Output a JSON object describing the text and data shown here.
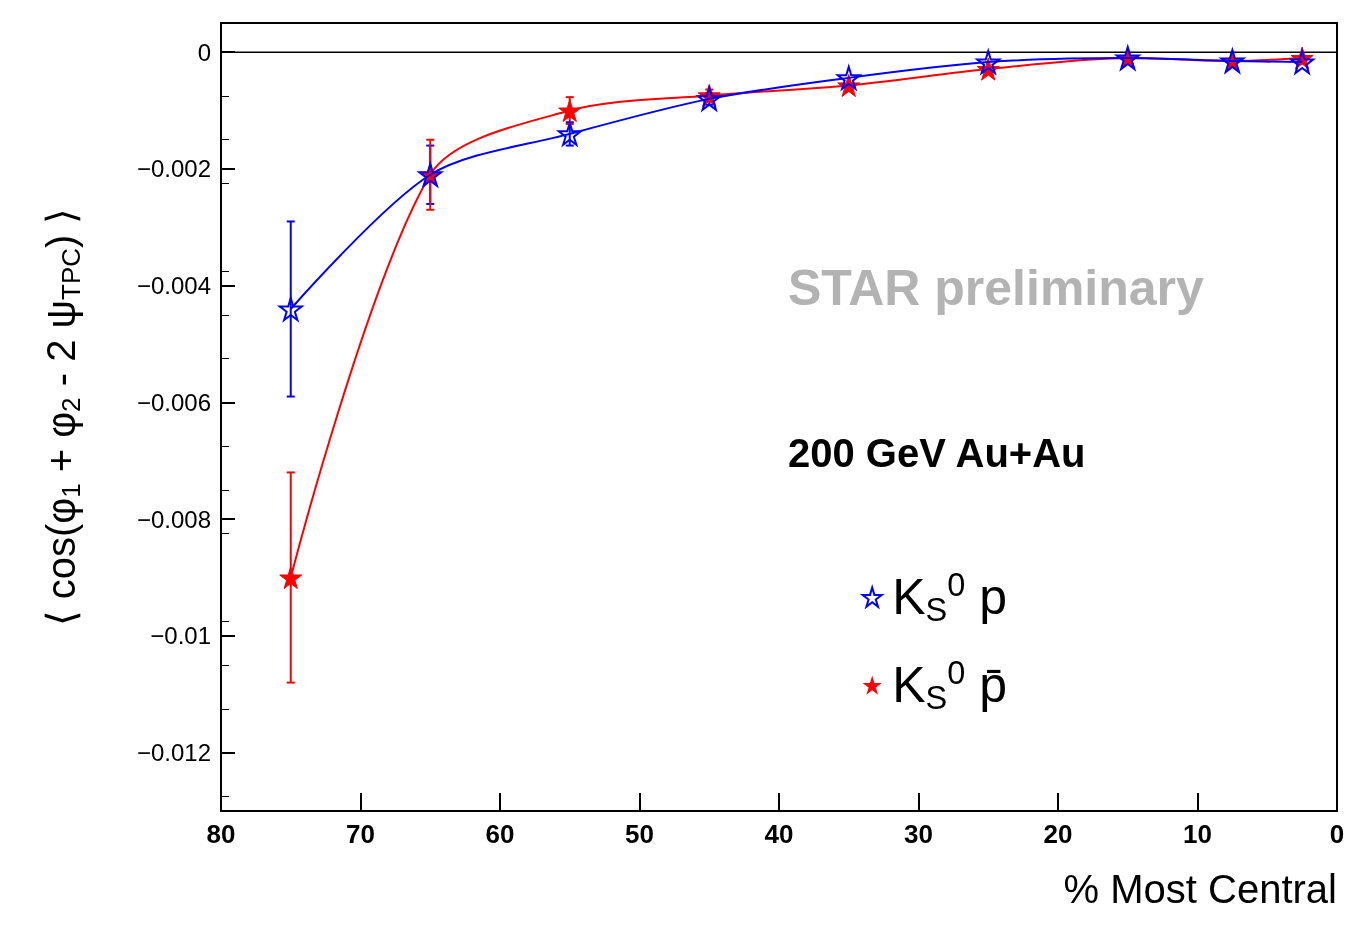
{
  "chart_data": {
    "type": "line",
    "xlabel": "% Most Central",
    "ylabel": "⟨ cos(φ$_{1}$ + φ$_{2}$ - 2 ψ$_{TPC}$) ⟩",
    "x": [
      75,
      65,
      55,
      45,
      35,
      25,
      15,
      7.5,
      2.5
    ],
    "series": [
      {
        "name": "K$_{S}$$^{0}$ p",
        "color": "#0000ff",
        "values": [
          -0.0044,
          -0.0021,
          -0.0014,
          -0.0008,
          -0.00044,
          -0.00017,
          -0.0001,
          -0.00015,
          -0.00017
        ],
        "errors": [
          0.0015,
          0.0005,
          0.0002,
          0.0001,
          null,
          null,
          null,
          null,
          null
        ]
      },
      {
        "name": "K$_{S}$$^{0}$ p̄",
        "color": "#ff0000",
        "values": [
          -0.009,
          -0.0021,
          -0.001,
          -0.00074,
          -0.00057,
          -0.00029,
          -0.0001,
          -0.00015,
          -0.0001
        ],
        "errors": [
          0.0018,
          0.0006,
          0.00023,
          0.0001,
          null,
          null,
          null,
          null,
          null
        ]
      }
    ],
    "xlim": [
      80,
      0
    ],
    "xticks": [
      80,
      70,
      60,
      50,
      40,
      30,
      20,
      10,
      0
    ],
    "ylim": [
      -0.013,
      0.0005
    ],
    "yticks": [
      {
        "value": 0,
        "label": "0"
      },
      {
        "value": -0.002,
        "label": "−0.002"
      },
      {
        "value": -0.004,
        "label": "−0.004"
      },
      {
        "value": -0.006,
        "label": "−0.006"
      },
      {
        "value": -0.008,
        "label": "−0.008"
      },
      {
        "value": -0.01,
        "label": "−0.01"
      },
      {
        "value": -0.012,
        "label": "−0.012"
      }
    ],
    "ref_lines": [
      {
        "axis": "y",
        "value": 0,
        "color": "#000000"
      }
    ],
    "annotations": [
      "STAR preliminary",
      "200 GeV Au+Au"
    ],
    "marker": "star",
    "legend": "bottom right",
    "grid": false
  }
}
